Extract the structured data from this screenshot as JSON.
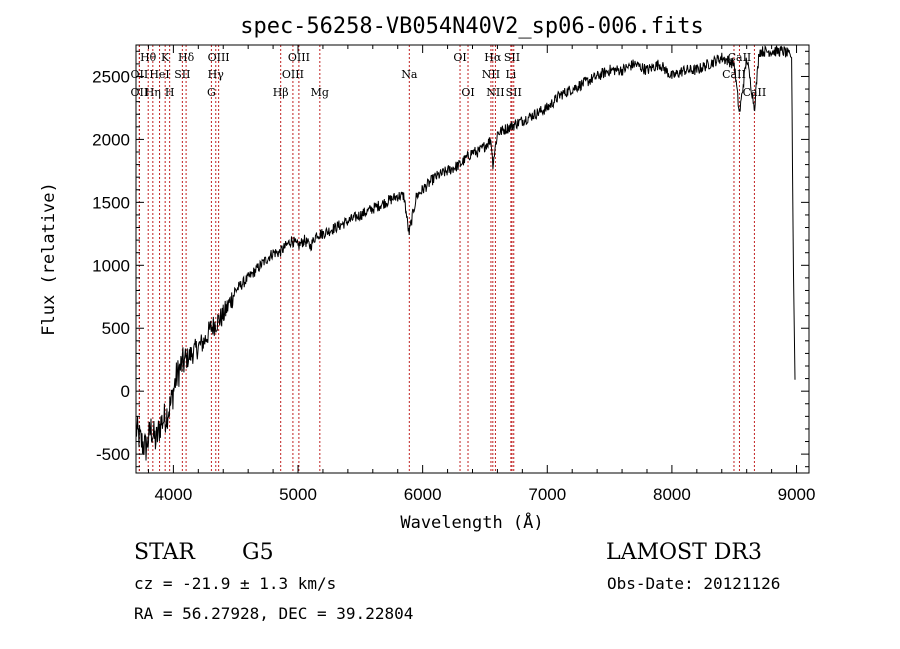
{
  "chart_data": {
    "type": "line",
    "title": "spec-56258-VB054N40V2_sp06-006.fits",
    "xlabel": "Wavelength (Å)",
    "ylabel": "Flux (relative)",
    "xlim": [
      3700,
      9100
    ],
    "ylim": [
      -650,
      2750
    ],
    "x_ticks": [
      4000,
      5000,
      6000,
      7000,
      8000,
      9000
    ],
    "y_ticks": [
      -500,
      0,
      500,
      1000,
      1500,
      2000,
      2500
    ],
    "grid": false,
    "series": [
      {
        "name": "spectrum",
        "x": [
          3700,
          3740,
          3780,
          3820,
          3860,
          3900,
          3940,
          3980,
          4020,
          4060,
          4100,
          4150,
          4200,
          4250,
          4300,
          4350,
          4400,
          4450,
          4500,
          4550,
          4600,
          4650,
          4700,
          4750,
          4800,
          4850,
          4900,
          4950,
          5000,
          5050,
          5100,
          5150,
          5200,
          5300,
          5400,
          5500,
          5600,
          5700,
          5800,
          5850,
          5890,
          5950,
          6000,
          6100,
          6200,
          6300,
          6400,
          6450,
          6500,
          6550,
          6563,
          6600,
          6700,
          6800,
          6900,
          7000,
          7100,
          7200,
          7300,
          7400,
          7500,
          7600,
          7700,
          7800,
          7900,
          8000,
          8100,
          8200,
          8300,
          8400,
          8500,
          8542,
          8600,
          8662,
          8700,
          8800,
          8900,
          8960,
          8975,
          8990
        ],
        "values": [
          -300,
          -400,
          -450,
          -300,
          -400,
          -250,
          -200,
          -100,
          100,
          200,
          250,
          300,
          350,
          400,
          500,
          550,
          600,
          700,
          800,
          850,
          900,
          950,
          1000,
          1050,
          1100,
          1100,
          1150,
          1200,
          1150,
          1200,
          1150,
          1250,
          1250,
          1300,
          1350,
          1400,
          1450,
          1500,
          1550,
          1550,
          1250,
          1550,
          1600,
          1700,
          1750,
          1800,
          1900,
          1900,
          1950,
          2000,
          1800,
          2050,
          2100,
          2150,
          2200,
          2250,
          2350,
          2400,
          2450,
          2500,
          2550,
          2550,
          2600,
          2550,
          2600,
          2500,
          2550,
          2550,
          2600,
          2650,
          2600,
          2200,
          2650,
          2250,
          2700,
          2700,
          2700,
          2650,
          1000,
          -50
        ]
      }
    ],
    "lines": [
      {
        "name": "Hθ",
        "wl": 3798,
        "row": 1
      },
      {
        "name": "OII",
        "wl": 3727,
        "row": 2
      },
      {
        "name": "OII",
        "wl": 3727,
        "row": 3
      },
      {
        "name": "Hη",
        "wl": 3835,
        "row": 3
      },
      {
        "name": "K",
        "wl": 3934,
        "row": 1
      },
      {
        "name": "HeI",
        "wl": 3889,
        "row": 2
      },
      {
        "name": "H",
        "wl": 3970,
        "row": 3
      },
      {
        "name": "SII",
        "wl": 4072,
        "row": 2
      },
      {
        "name": "Hδ",
        "wl": 4102,
        "row": 1
      },
      {
        "name": "OIII",
        "wl": 4363,
        "row": 1
      },
      {
        "name": "Hγ",
        "wl": 4340,
        "row": 2
      },
      {
        "name": "G",
        "wl": 4305,
        "row": 3
      },
      {
        "name": "Hβ",
        "wl": 4861,
        "row": 3
      },
      {
        "name": "OIII",
        "wl": 5007,
        "row": 1
      },
      {
        "name": "OIII",
        "wl": 4959,
        "row": 2
      },
      {
        "name": "Mg",
        "wl": 5175,
        "row": 3
      },
      {
        "name": "Na",
        "wl": 5893,
        "row": 2
      },
      {
        "name": "OI",
        "wl": 6300,
        "row": 1
      },
      {
        "name": "OI",
        "wl": 6364,
        "row": 3
      },
      {
        "name": "Hα",
        "wl": 6563,
        "row": 1
      },
      {
        "name": "NII",
        "wl": 6548,
        "row": 2
      },
      {
        "name": "NII",
        "wl": 6584,
        "row": 3
      },
      {
        "name": "SII",
        "wl": 6717,
        "row": 1
      },
      {
        "name": "Li",
        "wl": 6708,
        "row": 2
      },
      {
        "name": "SII",
        "wl": 6731,
        "row": 3
      },
      {
        "name": "CaII",
        "wl": 8542,
        "row": 1
      },
      {
        "name": "CaII",
        "wl": 8498,
        "row": 2
      },
      {
        "name": "CaII",
        "wl": 8662,
        "row": 3
      }
    ]
  },
  "info": {
    "object_class": "STAR",
    "subclass": "G5",
    "survey": "LAMOST DR3",
    "redshift": "cz = -21.9 ± 1.3 km/s",
    "obs_date": "Obs-Date: 20121126",
    "coords": "RA =  56.27928, DEC =  39.22804"
  }
}
